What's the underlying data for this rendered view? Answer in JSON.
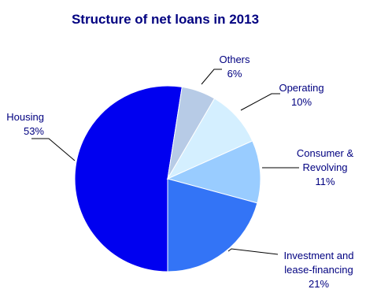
{
  "chart_data": {
    "type": "pie",
    "title": "Structure of net loans in 2013",
    "slices": [
      {
        "name": "Housing",
        "value": 53,
        "label_lines": [
          "Housing",
          "53%"
        ],
        "color": "#0000f0"
      },
      {
        "name": "Others",
        "value": 6,
        "label_lines": [
          "Others",
          "6%"
        ],
        "color": "#b7cbe6"
      },
      {
        "name": "Operating",
        "value": 10,
        "label_lines": [
          "Operating",
          "10%"
        ],
        "color": "#d4efff"
      },
      {
        "name": "Consumer & Revolving",
        "value": 11,
        "label_lines": [
          "Consumer &",
          "Revolving",
          "11%"
        ],
        "color": "#99ccff"
      },
      {
        "name": "Investment and lease-financing",
        "value": 21,
        "label_lines": [
          "Investment and",
          "lease-financing",
          "21%"
        ],
        "color": "#3374f6"
      }
    ],
    "text_color": "#000080",
    "leader_color": "#000000"
  }
}
